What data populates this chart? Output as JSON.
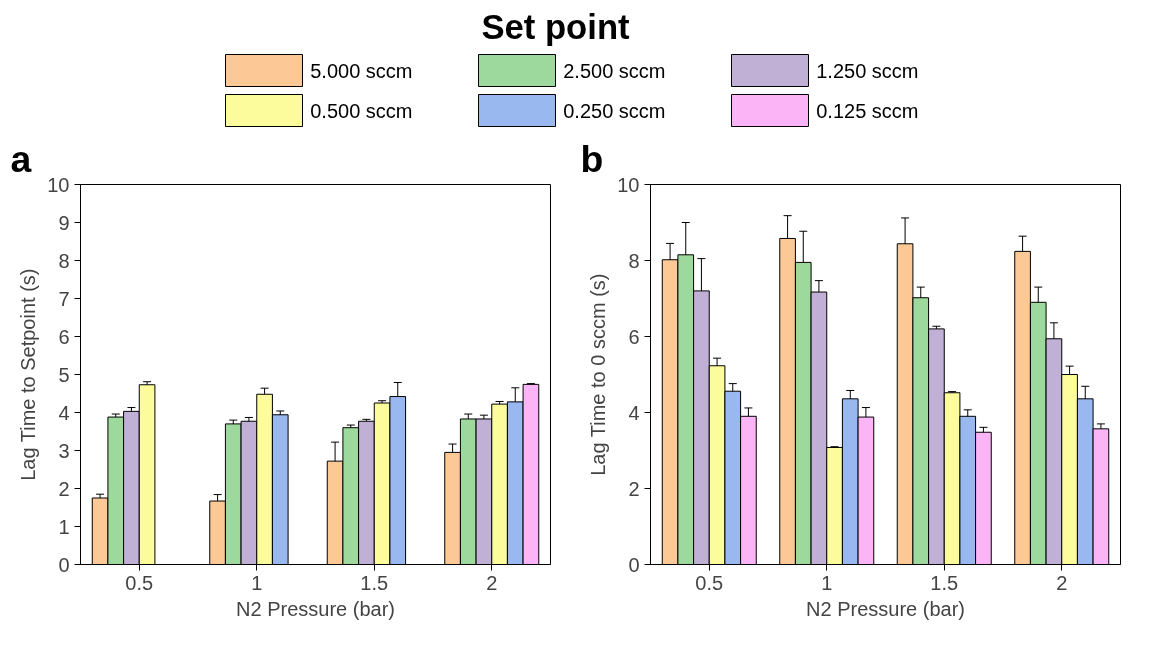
{
  "chart_data": [
    {
      "type": "bar",
      "legend_title": "Set point",
      "legend": "top",
      "annotations": [
        "a"
      ],
      "xlabel": "N2 Pressure (bar)",
      "ylabel": "Lag Time to Setpoint (s)",
      "categories": [
        "0.5",
        "1",
        "1.5",
        "2"
      ],
      "ylim": [
        0,
        10
      ],
      "yticks": [
        0,
        1,
        2,
        3,
        4,
        5,
        6,
        7,
        8,
        9,
        10
      ],
      "grid": false,
      "series": [
        {
          "name": "5.000 sccm",
          "color": "#fcc896",
          "values": [
            1.75,
            1.67,
            2.72,
            2.95
          ],
          "errors": [
            0.1,
            0.17,
            0.5,
            0.22
          ]
        },
        {
          "name": "2.500 sccm",
          "color": "#9dd89d",
          "values": [
            3.88,
            3.7,
            3.6,
            3.83
          ],
          "errors": [
            0.08,
            0.1,
            0.07,
            0.13
          ]
        },
        {
          "name": "1.250 sccm",
          "color": "#c0b0d6",
          "values": [
            4.03,
            3.77,
            3.77,
            3.83
          ],
          "errors": [
            0.1,
            0.1,
            0.05,
            0.1
          ]
        },
        {
          "name": "0.500 sccm",
          "color": "#fdfc9d",
          "values": [
            4.73,
            4.48,
            4.25,
            4.22
          ],
          "errors": [
            0.08,
            0.16,
            0.06,
            0.07
          ]
        },
        {
          "name": "0.250 sccm",
          "color": "#9ab8f0",
          "values": [
            null,
            3.94,
            4.42,
            4.28
          ],
          "errors": [
            null,
            0.1,
            0.37,
            0.37
          ]
        },
        {
          "name": "0.125 sccm",
          "color": "#fbb4f6",
          "values": [
            null,
            null,
            null,
            4.74
          ],
          "errors": [
            null,
            null,
            null,
            0.02
          ]
        }
      ]
    },
    {
      "type": "bar",
      "annotations": [
        "b"
      ],
      "xlabel": "N2 Pressure (bar)",
      "ylabel": "Lag Time to 0 sccm (s)",
      "categories": [
        "0.5",
        "1",
        "1.5",
        "2"
      ],
      "ylim": [
        0,
        10
      ],
      "yticks": [
        0,
        2,
        4,
        6,
        8,
        10
      ],
      "grid": false,
      "series": [
        {
          "color": "#fcc896",
          "values": [
            8.02,
            8.58,
            8.44,
            8.24
          ],
          "errors": [
            0.43,
            0.6,
            0.68,
            0.4
          ]
        },
        {
          "color": "#9dd89d",
          "values": [
            8.15,
            7.95,
            7.02,
            6.9
          ],
          "errors": [
            0.85,
            0.82,
            0.28,
            0.4
          ]
        },
        {
          "color": "#c0b0d6",
          "values": [
            7.2,
            7.17,
            6.2,
            5.94
          ],
          "errors": [
            0.85,
            0.3,
            0.07,
            0.42
          ]
        },
        {
          "color": "#fdfc9d",
          "values": [
            5.23,
            3.08,
            4.52,
            5.0
          ],
          "errors": [
            0.2,
            0.02,
            0.03,
            0.22
          ]
        },
        {
          "color": "#9ab8f0",
          "values": [
            4.56,
            4.36,
            3.9,
            4.36
          ],
          "errors": [
            0.2,
            0.22,
            0.17,
            0.33
          ]
        },
        {
          "color": "#fbb4f6",
          "values": [
            3.9,
            3.88,
            3.48,
            3.57
          ],
          "errors": [
            0.22,
            0.25,
            0.13,
            0.13
          ]
        }
      ]
    }
  ]
}
